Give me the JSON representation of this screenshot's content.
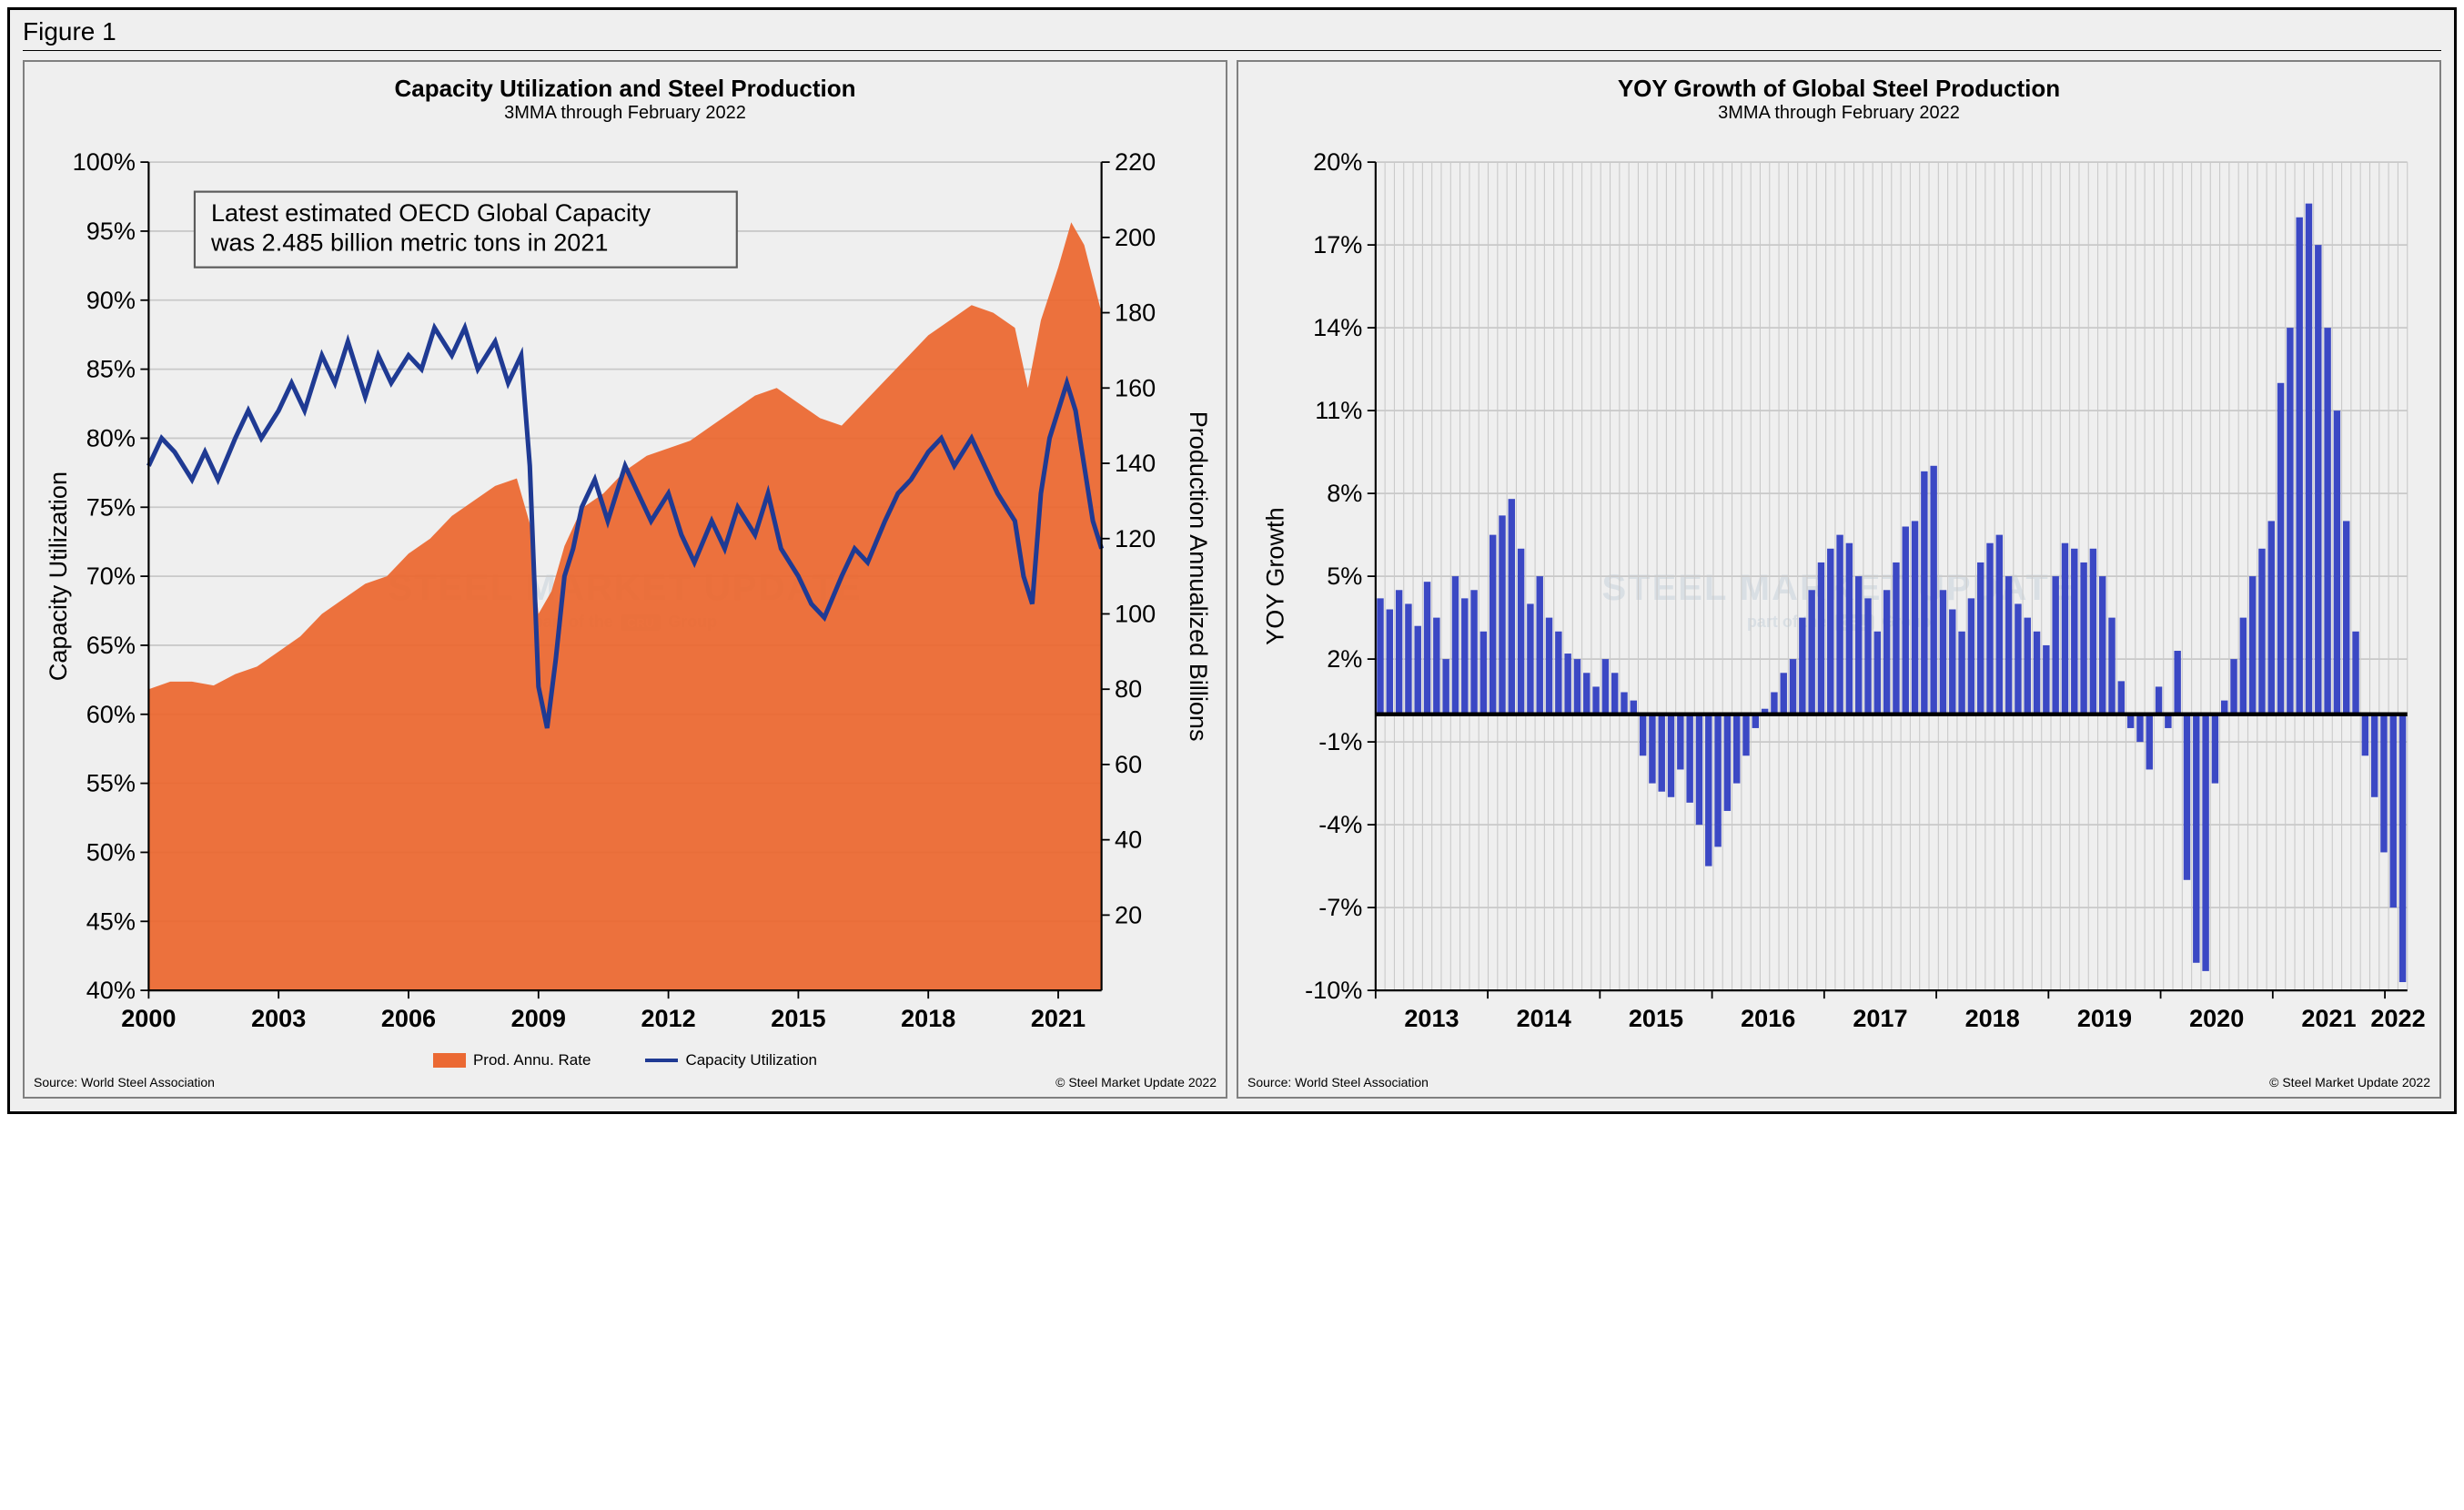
{
  "figure_label": "Figure 1",
  "watermark": {
    "line1": "STEEL MARKET UPDATE",
    "line2_prefix": "part of the",
    "line2_badge": "CRU",
    "line2_suffix": "Group"
  },
  "left_chart": {
    "type": "area+line",
    "title": "Capacity Utilization and Steel Production",
    "subtitle": "3MMA through February 2022",
    "x_label": "",
    "y_left_label": "Capacity Utilization",
    "y_right_label": "Production Annualized Billions",
    "x_ticks": [
      "2000",
      "2003",
      "2006",
      "2009",
      "2012",
      "2015",
      "2018",
      "2021"
    ],
    "x_range": [
      2000,
      2022
    ],
    "y_left_ticks": [
      "100%",
      "95%",
      "90%",
      "85%",
      "80%",
      "75%",
      "70%",
      "65%",
      "60%",
      "55%",
      "50%",
      "45%",
      "40%"
    ],
    "y_left_range": [
      40,
      100
    ],
    "y_right_ticks": [
      "220",
      "200",
      "180",
      "160",
      "140",
      "120",
      "100",
      "80",
      "60",
      "40",
      "20"
    ],
    "y_right_range": [
      0,
      220
    ],
    "annotation": {
      "text_line1": "Latest estimated OECD Global Capacity",
      "text_line2": "was 2.485 billion metric tons in 2021",
      "box_stroke": "#5b5b5b",
      "box_fill": "#efefef"
    },
    "area_color": "#eb6933",
    "line_color": "#1f3a93",
    "line_width": 2.8,
    "grid_color": "#c9c9c9",
    "background": "#efefef",
    "legend": [
      {
        "label": "Prod. Annu. Rate",
        "swatch_type": "area",
        "color": "#eb6933"
      },
      {
        "label": "Capacity Utilization",
        "swatch_type": "line",
        "color": "#1f3a93"
      }
    ],
    "source_left": "Source: World Steel Association",
    "source_right": "© Steel Market Update 2022",
    "production_series": [
      {
        "x": 2000.0,
        "y": 80
      },
      {
        "x": 2000.5,
        "y": 82
      },
      {
        "x": 2001.0,
        "y": 82
      },
      {
        "x": 2001.5,
        "y": 81
      },
      {
        "x": 2002.0,
        "y": 84
      },
      {
        "x": 2002.5,
        "y": 86
      },
      {
        "x": 2003.0,
        "y": 90
      },
      {
        "x": 2003.5,
        "y": 94
      },
      {
        "x": 2004.0,
        "y": 100
      },
      {
        "x": 2004.5,
        "y": 104
      },
      {
        "x": 2005.0,
        "y": 108
      },
      {
        "x": 2005.5,
        "y": 110
      },
      {
        "x": 2006.0,
        "y": 116
      },
      {
        "x": 2006.5,
        "y": 120
      },
      {
        "x": 2007.0,
        "y": 126
      },
      {
        "x": 2007.5,
        "y": 130
      },
      {
        "x": 2008.0,
        "y": 134
      },
      {
        "x": 2008.5,
        "y": 136
      },
      {
        "x": 2008.8,
        "y": 124
      },
      {
        "x": 2009.0,
        "y": 100
      },
      {
        "x": 2009.3,
        "y": 106
      },
      {
        "x": 2009.6,
        "y": 118
      },
      {
        "x": 2010.0,
        "y": 128
      },
      {
        "x": 2010.5,
        "y": 132
      },
      {
        "x": 2011.0,
        "y": 138
      },
      {
        "x": 2011.5,
        "y": 142
      },
      {
        "x": 2012.0,
        "y": 144
      },
      {
        "x": 2012.5,
        "y": 146
      },
      {
        "x": 2013.0,
        "y": 150
      },
      {
        "x": 2013.5,
        "y": 154
      },
      {
        "x": 2014.0,
        "y": 158
      },
      {
        "x": 2014.5,
        "y": 160
      },
      {
        "x": 2015.0,
        "y": 156
      },
      {
        "x": 2015.5,
        "y": 152
      },
      {
        "x": 2016.0,
        "y": 150
      },
      {
        "x": 2016.5,
        "y": 156
      },
      {
        "x": 2017.0,
        "y": 162
      },
      {
        "x": 2017.5,
        "y": 168
      },
      {
        "x": 2018.0,
        "y": 174
      },
      {
        "x": 2018.5,
        "y": 178
      },
      {
        "x": 2019.0,
        "y": 182
      },
      {
        "x": 2019.5,
        "y": 180
      },
      {
        "x": 2020.0,
        "y": 176
      },
      {
        "x": 2020.3,
        "y": 160
      },
      {
        "x": 2020.6,
        "y": 178
      },
      {
        "x": 2021.0,
        "y": 192
      },
      {
        "x": 2021.3,
        "y": 204
      },
      {
        "x": 2021.6,
        "y": 198
      },
      {
        "x": 2022.0,
        "y": 180
      }
    ],
    "utilization_series": [
      {
        "x": 2000.0,
        "y": 78
      },
      {
        "x": 2000.3,
        "y": 80
      },
      {
        "x": 2000.6,
        "y": 79
      },
      {
        "x": 2001.0,
        "y": 77
      },
      {
        "x": 2001.3,
        "y": 79
      },
      {
        "x": 2001.6,
        "y": 77
      },
      {
        "x": 2002.0,
        "y": 80
      },
      {
        "x": 2002.3,
        "y": 82
      },
      {
        "x": 2002.6,
        "y": 80
      },
      {
        "x": 2003.0,
        "y": 82
      },
      {
        "x": 2003.3,
        "y": 84
      },
      {
        "x": 2003.6,
        "y": 82
      },
      {
        "x": 2004.0,
        "y": 86
      },
      {
        "x": 2004.3,
        "y": 84
      },
      {
        "x": 2004.6,
        "y": 87
      },
      {
        "x": 2005.0,
        "y": 83
      },
      {
        "x": 2005.3,
        "y": 86
      },
      {
        "x": 2005.6,
        "y": 84
      },
      {
        "x": 2006.0,
        "y": 86
      },
      {
        "x": 2006.3,
        "y": 85
      },
      {
        "x": 2006.6,
        "y": 88
      },
      {
        "x": 2007.0,
        "y": 86
      },
      {
        "x": 2007.3,
        "y": 88
      },
      {
        "x": 2007.6,
        "y": 85
      },
      {
        "x": 2008.0,
        "y": 87
      },
      {
        "x": 2008.3,
        "y": 84
      },
      {
        "x": 2008.6,
        "y": 86
      },
      {
        "x": 2008.8,
        "y": 78
      },
      {
        "x": 2009.0,
        "y": 62
      },
      {
        "x": 2009.2,
        "y": 59
      },
      {
        "x": 2009.4,
        "y": 64
      },
      {
        "x": 2009.6,
        "y": 70
      },
      {
        "x": 2009.8,
        "y": 72
      },
      {
        "x": 2010.0,
        "y": 75
      },
      {
        "x": 2010.3,
        "y": 77
      },
      {
        "x": 2010.6,
        "y": 74
      },
      {
        "x": 2011.0,
        "y": 78
      },
      {
        "x": 2011.3,
        "y": 76
      },
      {
        "x": 2011.6,
        "y": 74
      },
      {
        "x": 2012.0,
        "y": 76
      },
      {
        "x": 2012.3,
        "y": 73
      },
      {
        "x": 2012.6,
        "y": 71
      },
      {
        "x": 2013.0,
        "y": 74
      },
      {
        "x": 2013.3,
        "y": 72
      },
      {
        "x": 2013.6,
        "y": 75
      },
      {
        "x": 2014.0,
        "y": 73
      },
      {
        "x": 2014.3,
        "y": 76
      },
      {
        "x": 2014.6,
        "y": 72
      },
      {
        "x": 2015.0,
        "y": 70
      },
      {
        "x": 2015.3,
        "y": 68
      },
      {
        "x": 2015.6,
        "y": 67
      },
      {
        "x": 2016.0,
        "y": 70
      },
      {
        "x": 2016.3,
        "y": 72
      },
      {
        "x": 2016.6,
        "y": 71
      },
      {
        "x": 2017.0,
        "y": 74
      },
      {
        "x": 2017.3,
        "y": 76
      },
      {
        "x": 2017.6,
        "y": 77
      },
      {
        "x": 2018.0,
        "y": 79
      },
      {
        "x": 2018.3,
        "y": 80
      },
      {
        "x": 2018.6,
        "y": 78
      },
      {
        "x": 2019.0,
        "y": 80
      },
      {
        "x": 2019.3,
        "y": 78
      },
      {
        "x": 2019.6,
        "y": 76
      },
      {
        "x": 2020.0,
        "y": 74
      },
      {
        "x": 2020.2,
        "y": 70
      },
      {
        "x": 2020.4,
        "y": 68
      },
      {
        "x": 2020.6,
        "y": 76
      },
      {
        "x": 2020.8,
        "y": 80
      },
      {
        "x": 2021.0,
        "y": 82
      },
      {
        "x": 2021.2,
        "y": 84
      },
      {
        "x": 2021.4,
        "y": 82
      },
      {
        "x": 2021.6,
        "y": 78
      },
      {
        "x": 2021.8,
        "y": 74
      },
      {
        "x": 2022.0,
        "y": 72
      }
    ]
  },
  "right_chart": {
    "type": "bar",
    "title": "YOY Growth of Global Steel Production",
    "subtitle": "3MMA through February 2022",
    "y_label": "YOY Growth",
    "x_ticks": [
      "2013",
      "2014",
      "2015",
      "2016",
      "2017",
      "2018",
      "2019",
      "2020",
      "2021",
      "2022"
    ],
    "x_range": [
      2013,
      2022.2
    ],
    "y_ticks": [
      "20%",
      "17%",
      "14%",
      "11%",
      "8%",
      "5%",
      "2%",
      "-1%",
      "-4%",
      "-7%",
      "-10%"
    ],
    "y_range": [
      -10,
      20
    ],
    "bar_color": "#3b48c4",
    "grid_color": "#c9c9c9",
    "zero_line_color": "#000000",
    "background": "#efefef",
    "source_left": "Source: World Steel Association",
    "source_right": "© Steel Market Update 2022",
    "bars": [
      4.2,
      3.8,
      4.5,
      4.0,
      3.2,
      4.8,
      3.5,
      2.0,
      5.0,
      4.2,
      4.5,
      3.0,
      6.5,
      7.2,
      7.8,
      6.0,
      4.0,
      5.0,
      3.5,
      3.0,
      2.2,
      2.0,
      1.5,
      1.0,
      2.0,
      1.5,
      0.8,
      0.5,
      -1.5,
      -2.5,
      -2.8,
      -3.0,
      -2.0,
      -3.2,
      -4.0,
      -5.5,
      -4.8,
      -3.5,
      -2.5,
      -1.5,
      -0.5,
      0.2,
      0.8,
      1.5,
      2.0,
      3.5,
      4.5,
      5.5,
      6.0,
      6.5,
      6.2,
      5.0,
      4.2,
      3.0,
      4.5,
      5.5,
      6.8,
      7.0,
      8.8,
      9.0,
      4.5,
      3.8,
      3.0,
      4.2,
      5.5,
      6.2,
      6.5,
      5.0,
      4.0,
      3.5,
      3.0,
      2.5,
      5.0,
      6.2,
      6.0,
      5.5,
      6.0,
      5.0,
      3.5,
      1.2,
      -0.5,
      -1.0,
      -2.0,
      1.0,
      -0.5,
      2.3,
      -6.0,
      -9.0,
      -9.3,
      -2.5,
      0.5,
      2.0,
      3.5,
      5.0,
      6.0,
      7.0,
      12.0,
      14.0,
      18.0,
      18.5,
      17.0,
      14.0,
      11.0,
      7.0,
      3.0,
      -1.5,
      -3.0,
      -5.0,
      -7.0,
      -9.7
    ]
  }
}
